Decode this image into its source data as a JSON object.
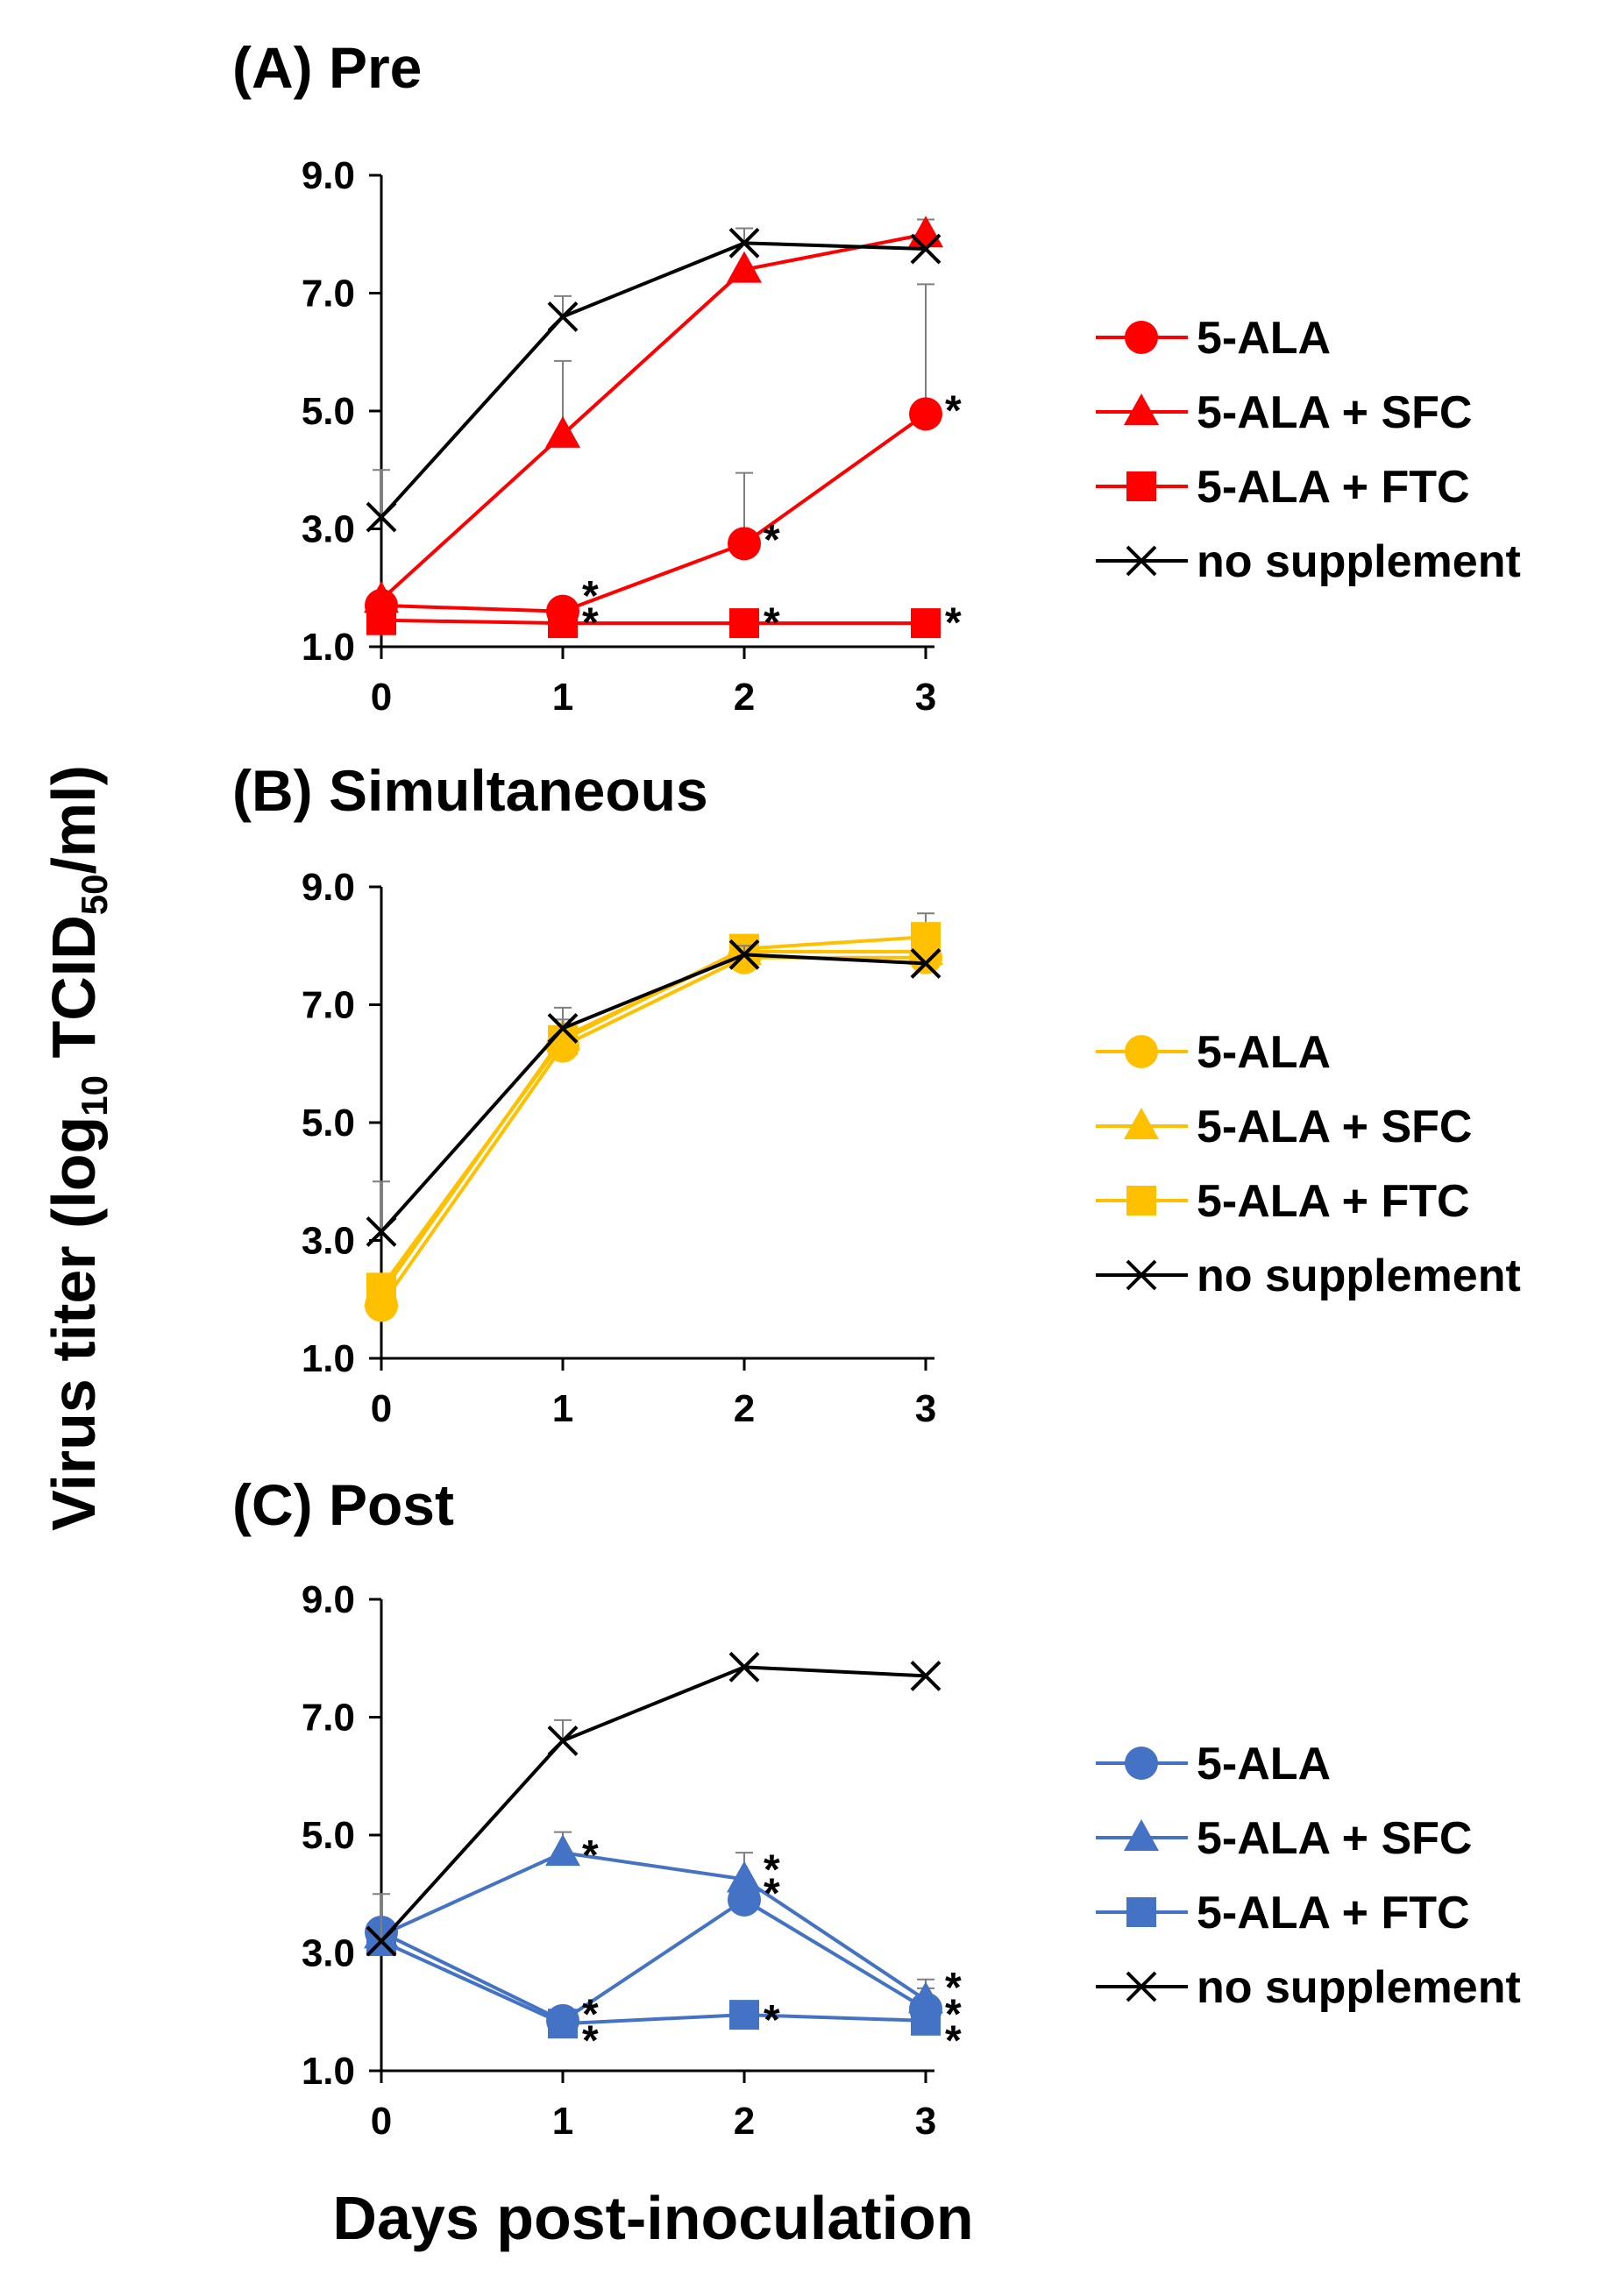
{
  "figure": {
    "ylabel_main": "Virus titer (log",
    "ylabel_sub": "10",
    "ylabel_mid": " TCID",
    "ylabel_sub2": "50",
    "ylabel_end": "/ml)",
    "xlabel": "Days post-inoculation"
  },
  "colors": {
    "red": "#ff0000",
    "yellow": "#ffc000",
    "blue": "#4472c4",
    "black": "#000000",
    "error_bar": "#7f7f7f"
  },
  "chart_data": [
    {
      "type": "line",
      "title": "(A) Pre",
      "color": "red",
      "categories": [
        0,
        1,
        2,
        3
      ],
      "ylim": [
        1.0,
        9.0
      ],
      "yticks": [
        "1.0",
        "3.0",
        "5.0",
        "7.0",
        "9.0"
      ],
      "xticks": [
        "0",
        "1",
        "2",
        "3"
      ],
      "series": [
        {
          "name": "5-ALA",
          "marker": "circle",
          "values": [
            1.7,
            1.6,
            2.75,
            4.95
          ],
          "errors": [
            0,
            0,
            1.2,
            2.2
          ]
        },
        {
          "name": "5-ALA + SFC",
          "marker": "triangle",
          "values": [
            1.8,
            4.6,
            7.4,
            8.0
          ],
          "errors": [
            0,
            1.25,
            0,
            0.25
          ]
        },
        {
          "name": "5-ALA + FTC",
          "marker": "square",
          "values": [
            1.45,
            1.4,
            1.4,
            1.4
          ],
          "errors": [
            0,
            0,
            0,
            0
          ]
        },
        {
          "name": "no supplement",
          "marker": "x",
          "values": [
            3.2,
            6.6,
            7.85,
            7.75
          ],
          "errors": [
            0.8,
            0.35,
            0.25,
            0
          ]
        }
      ],
      "annotations": [
        {
          "x": 1,
          "y": 1.95,
          "text": "*"
        },
        {
          "x": 1,
          "y": 1.5,
          "text": "*"
        },
        {
          "x": 2,
          "y": 1.5,
          "text": "*"
        },
        {
          "x": 3,
          "y": 1.5,
          "text": "*"
        },
        {
          "x": 2,
          "y": 2.9,
          "text": "*"
        },
        {
          "x": 3,
          "y": 5.1,
          "text": "*"
        }
      ]
    },
    {
      "type": "line",
      "title": "(B) Simultaneous",
      "color": "yellow",
      "categories": [
        0,
        1,
        2,
        3
      ],
      "ylim": [
        1.0,
        9.0
      ],
      "yticks": [
        "1.0",
        "3.0",
        "5.0",
        "7.0",
        "9.0"
      ],
      "xticks": [
        "0",
        "1",
        "2",
        "3"
      ],
      "series": [
        {
          "name": "5-ALA",
          "marker": "circle",
          "values": [
            1.9,
            6.3,
            7.8,
            7.8
          ],
          "errors": [
            0,
            0,
            0,
            0
          ]
        },
        {
          "name": "5-ALA + SFC",
          "marker": "triangle",
          "values": [
            2.1,
            6.45,
            7.9,
            7.9
          ],
          "errors": [
            0,
            0.3,
            0,
            0
          ]
        },
        {
          "name": "5-ALA + FTC",
          "marker": "square",
          "values": [
            2.2,
            6.4,
            7.95,
            8.15
          ],
          "errors": [
            0,
            0,
            0,
            0.4
          ]
        },
        {
          "name": "no supplement",
          "marker": "x",
          "values": [
            3.15,
            6.6,
            7.85,
            7.7
          ],
          "errors": [
            0.85,
            0.35,
            0.15,
            0
          ]
        }
      ],
      "annotations": []
    },
    {
      "type": "line",
      "title": "(C) Post",
      "color": "blue",
      "categories": [
        0,
        1,
        2,
        3
      ],
      "ylim": [
        1.0,
        9.0
      ],
      "yticks": [
        "1.0",
        "3.0",
        "5.0",
        "7.0",
        "9.0"
      ],
      "xticks": [
        "0",
        "1",
        "2",
        "3"
      ],
      "series": [
        {
          "name": "5-ALA",
          "marker": "circle",
          "values": [
            3.35,
            1.85,
            3.9,
            2.05
          ],
          "errors": [
            0,
            0,
            0,
            0.35
          ]
        },
        {
          "name": "5-ALA + SFC",
          "marker": "triangle",
          "values": [
            3.3,
            4.7,
            4.25,
            2.2
          ],
          "errors": [
            0,
            0.35,
            0.45,
            0.35
          ]
        },
        {
          "name": "5-ALA + FTC",
          "marker": "square",
          "values": [
            3.2,
            1.8,
            1.95,
            1.85
          ],
          "errors": [
            0,
            0,
            0,
            0
          ]
        },
        {
          "name": "no supplement",
          "marker": "x",
          "values": [
            3.2,
            6.6,
            7.85,
            7.7
          ],
          "errors": [
            0.8,
            0.35,
            0,
            0
          ]
        }
      ],
      "annotations": [
        {
          "x": 1,
          "y": 4.75,
          "text": "*"
        },
        {
          "x": 1,
          "y": 2.05,
          "text": "*"
        },
        {
          "x": 1,
          "y": 1.6,
          "text": "*"
        },
        {
          "x": 2,
          "y": 4.5,
          "text": "*"
        },
        {
          "x": 2,
          "y": 4.1,
          "text": "*"
        },
        {
          "x": 2,
          "y": 1.95,
          "text": "*"
        },
        {
          "x": 3,
          "y": 2.5,
          "text": "*"
        },
        {
          "x": 3,
          "y": 2.05,
          "text": "*"
        },
        {
          "x": 3,
          "y": 1.6,
          "text": "*"
        }
      ]
    }
  ]
}
